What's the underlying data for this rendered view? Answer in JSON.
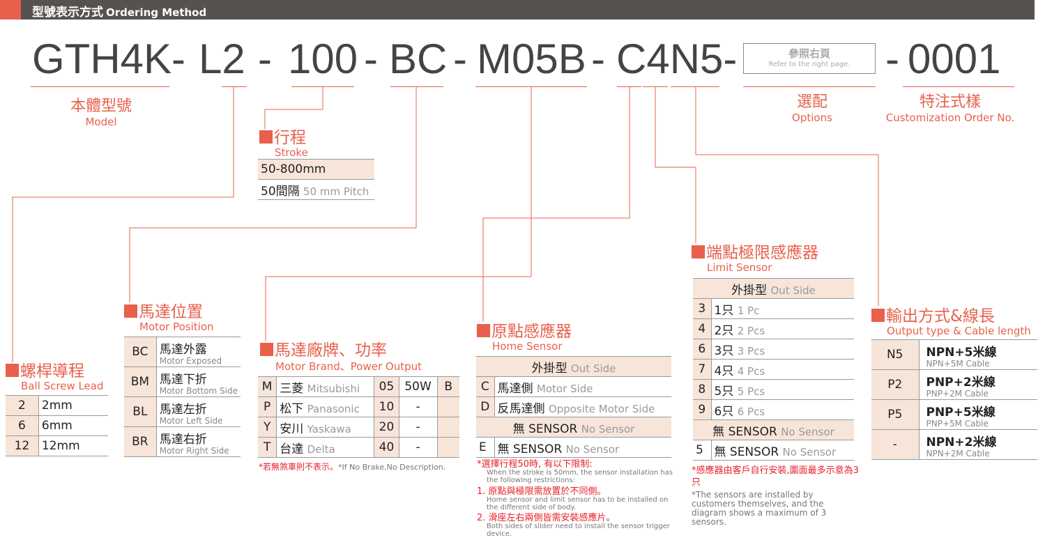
{
  "header": {
    "title_zh": "型號表示方式",
    "title_en": "Ordering Method"
  },
  "code": {
    "model": "GTH4K-",
    "lead": "L2",
    "d1": "-",
    "stroke": "100",
    "d2": "-",
    "position": "BC",
    "d3": "-",
    "motor": "M05B",
    "d4": "-",
    "sensors": "C4N5-",
    "d5": "-",
    "custom": "0001"
  },
  "options_box": {
    "zh": "參照右頁",
    "en": "Refer to the right page."
  },
  "labels": {
    "model": {
      "zh": "本體型號",
      "en": "Model"
    },
    "options": {
      "zh": "選配",
      "en": "Options"
    },
    "custom": {
      "zh": "特注式樣",
      "en": "Customization Order No."
    }
  },
  "colors": {
    "accent": "#e8604c",
    "header_bg": "#555250",
    "cell_bg": "#f7e5da",
    "note_red": "#e8202a"
  },
  "stroke": {
    "zh": "行程",
    "en": "Stroke",
    "rows": [
      [
        "50-800mm"
      ],
      [
        "50間隔",
        "50 mm Pitch"
      ]
    ]
  },
  "lead": {
    "zh": "螺桿導程",
    "en": "Ball Screw Lead",
    "rows": [
      [
        "2",
        "2mm"
      ],
      [
        "6",
        "6mm"
      ],
      [
        "12",
        "12mm"
      ]
    ]
  },
  "position": {
    "zh": "馬達位置",
    "en": "Motor Position",
    "rows": [
      [
        "BC",
        "馬達外露",
        "Motor Exposed"
      ],
      [
        "BM",
        "馬達下折",
        "Motor Bottom Side"
      ],
      [
        "BL",
        "馬達左折",
        "Motor Left Side"
      ],
      [
        "BR",
        "馬達右折",
        "Motor Right Side"
      ]
    ]
  },
  "brand": {
    "zh": "馬達廠牌、功率",
    "en": "Motor Brand、Power Output",
    "rows": [
      [
        "M",
        "三菱",
        "Mitsubishi",
        "05",
        "50W",
        "B"
      ],
      [
        "P",
        "松下",
        "Panasonic",
        "10",
        "-",
        ""
      ],
      [
        "Y",
        "安川",
        "Yaskawa",
        "20",
        "-",
        ""
      ],
      [
        "T",
        "台達",
        "Delta",
        "40",
        "-",
        ""
      ]
    ],
    "note_zh": "*若無煞車則不表示。",
    "note_en": "*If No Brake,No Description."
  },
  "home": {
    "zh": "原點感應器",
    "en": "Home Sensor",
    "header1": {
      "zh": "外掛型",
      "en": "Out Side"
    },
    "rows": [
      [
        "C",
        "馬達側",
        "Motor Side"
      ],
      [
        "D",
        "反馬達側",
        "Opposite Motor Side"
      ]
    ],
    "header2": {
      "zh": "無 SENSOR",
      "en": "No Sensor"
    },
    "rows2": [
      [
        "E",
        "無 SENSOR",
        "No Sensor"
      ]
    ],
    "notes": [
      {
        "zh": "*選擇行程50時, 有以下限制:",
        "en": "When the stroke is 50mm, the sensor installation has the following restrictions:"
      },
      {
        "zh": "1. 原點與極限需放置於不同側。",
        "en": "Home sensor and limit sensor has to be installed on the different side of body."
      },
      {
        "zh": "2. 滑座左右兩側皆需安裝感應片。",
        "en": "Both sides of slider need to install the sensor trigger device."
      }
    ]
  },
  "limit": {
    "zh": "端點極限感應器",
    "en": "Limit Sensor",
    "header1": {
      "zh": "外掛型",
      "en": "Out Side"
    },
    "rows": [
      [
        "3",
        "1只",
        "1 Pc"
      ],
      [
        "4",
        "2只",
        "2 Pcs"
      ],
      [
        "6",
        "3只",
        "3 Pcs"
      ],
      [
        "7",
        "4只",
        "4 Pcs"
      ],
      [
        "8",
        "5只",
        "5 Pcs"
      ],
      [
        "9",
        "6只",
        "6 Pcs"
      ]
    ],
    "header2": {
      "zh": "無 SENSOR",
      "en": "No Sensor"
    },
    "rows2": [
      [
        "5",
        "無 SENSOR",
        "No Sensor"
      ]
    ],
    "note_zh": "*感應器由客戶自行安裝,圖面最多示意為3只",
    "note_en": "*The sensors are installed by customers themselves, and the diagram shows a maximum of 3 sensors."
  },
  "output": {
    "zh": "輸出方式&線長",
    "en": "Output type & Cable length",
    "rows": [
      [
        "N5",
        "NPN+5米線",
        "NPN+5M Cable"
      ],
      [
        "P2",
        "PNP+2米線",
        "PNP+2M Cable"
      ],
      [
        "P5",
        "PNP+5米線",
        "PNP+5M Cable"
      ],
      [
        "-",
        "NPN+2米線",
        "NPN+2M Cable"
      ]
    ]
  }
}
